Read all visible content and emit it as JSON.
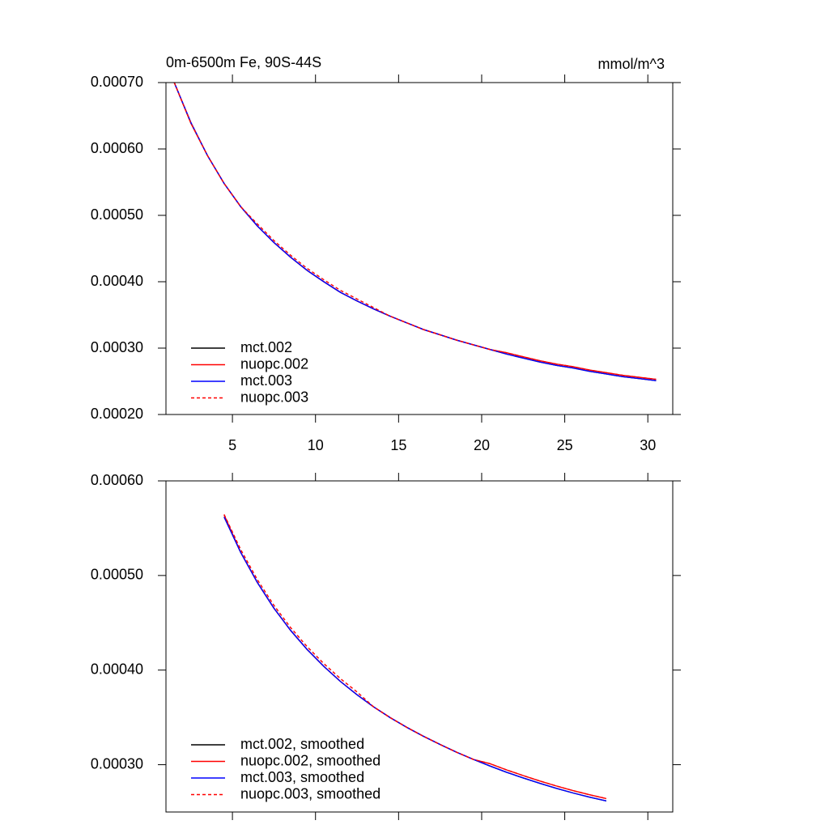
{
  "chart_data": [
    {
      "type": "line",
      "title": "0m-6500m Fe, 90S-44S",
      "units": "mmol/m^3",
      "x": [
        1.5,
        2.5,
        3.5,
        4.5,
        5.5,
        6.5,
        7.5,
        8.5,
        9.5,
        10.5,
        11.5,
        12.5,
        13.5,
        14.5,
        15.5,
        16.5,
        17.5,
        18.5,
        19.5,
        20.5,
        21.5,
        22.5,
        23.5,
        24.5,
        25.5,
        26.5,
        27.5,
        28.5,
        29.5,
        30.5
      ],
      "series": [
        {
          "name": "mct.002",
          "color": "#000000",
          "dashed": false,
          "values": [
            0.0007,
            0.000639,
            0.00059,
            0.000548,
            0.000513,
            0.000484,
            0.000459,
            0.000437,
            0.000417,
            0.0004,
            0.000384,
            0.000371,
            0.000359,
            0.000348,
            0.000338,
            0.000328,
            0.00032,
            0.000312,
            0.000305,
            0.000298,
            0.000291,
            0.000285,
            0.000279,
            0.000274,
            0.00027,
            0.000265,
            0.000261,
            0.000257,
            0.000254,
            0.000251
          ]
        },
        {
          "name": "nuopc.002",
          "color": "#ff0000",
          "dashed": false,
          "values": [
            0.0007,
            0.000639,
            0.00059,
            0.000548,
            0.000513,
            0.000484,
            0.000459,
            0.000437,
            0.000417,
            0.0004,
            0.000384,
            0.000371,
            0.000359,
            0.000348,
            0.000338,
            0.000328,
            0.00032,
            0.000312,
            0.000305,
            0.000298,
            0.000293,
            0.000287,
            0.000281,
            0.000276,
            0.000272,
            0.000267,
            0.000263,
            0.000259,
            0.000256,
            0.000253
          ]
        },
        {
          "name": "mct.003",
          "color": "#0000ff",
          "dashed": false,
          "values": [
            0.0007,
            0.00064,
            0.00059,
            0.000548,
            0.000513,
            0.000484,
            0.000459,
            0.000437,
            0.000417,
            0.0004,
            0.000384,
            0.000371,
            0.000359,
            0.000348,
            0.000338,
            0.000328,
            0.00032,
            0.000312,
            0.000305,
            0.000298,
            0.000291,
            0.000285,
            0.000279,
            0.000274,
            0.00027,
            0.000265,
            0.000261,
            0.000257,
            0.000254,
            0.000251
          ]
        },
        {
          "name": "nuopc.003",
          "color": "#ff0000",
          "dashed": true,
          "values": [
            0.0007,
            0.000639,
            0.00059,
            0.000548,
            0.000513,
            0.000487,
            0.000462,
            0.00044,
            0.00042,
            0.000403,
            0.000387,
            0.000374,
            0.000361,
            0.000348,
            0.000338,
            0.000328,
            0.00032,
            0.000312,
            0.000305,
            0.000298,
            0.000293,
            0.000287,
            0.000281,
            0.000276,
            0.000272,
            0.000267,
            0.000263,
            0.000259,
            0.000256,
            0.000253
          ]
        }
      ],
      "xlim": [
        1,
        31.5
      ],
      "xticks": [
        5,
        10,
        15,
        20,
        25,
        30
      ],
      "ylim": [
        0.0002,
        0.0007
      ],
      "yticks": [
        {
          "value": 0.0002,
          "label": "0.00020"
        },
        {
          "value": 0.0003,
          "label": "0.00030"
        },
        {
          "value": 0.0004,
          "label": "0.00040"
        },
        {
          "value": 0.0005,
          "label": "0.00050"
        },
        {
          "value": 0.0006,
          "label": "0.00060"
        },
        {
          "value": 0.0007,
          "label": "0.00070"
        }
      ],
      "legend": "lower left"
    },
    {
      "type": "line",
      "x": [
        4.5,
        5.5,
        6.5,
        7.5,
        8.5,
        9.5,
        10.5,
        11.5,
        12.5,
        13.5,
        14.5,
        15.5,
        16.5,
        17.5,
        18.5,
        19.5,
        20.5,
        21.5,
        22.5,
        23.5,
        24.5,
        25.5,
        26.5,
        27.5
      ],
      "series": [
        {
          "name": "mct.002, smoothed",
          "color": "#000000",
          "dashed": false,
          "values": [
            0.0005619,
            0.0005243,
            0.0004926,
            0.0004654,
            0.000442,
            0.0004217,
            0.0004039,
            0.000388,
            0.0003739,
            0.0003611,
            0.0003497,
            0.0003394,
            0.00033,
            0.0003213,
            0.0003131,
            0.0003056,
            0.0002986,
            0.000292,
            0.000286,
            0.0002803,
            0.000275,
            0.0002701,
            0.0002657,
            0.0002617
          ]
        },
        {
          "name": "nuopc.002, smoothed",
          "color": "#ff0000",
          "dashed": false,
          "values": [
            0.000564,
            0.0005243,
            0.0004926,
            0.0004654,
            0.000442,
            0.0004217,
            0.0004039,
            0.000388,
            0.0003739,
            0.0003611,
            0.0003497,
            0.0003394,
            0.00033,
            0.0003213,
            0.0003131,
            0.0003056,
            0.0003011,
            0.0002945,
            0.0002885,
            0.0002828,
            0.0002775,
            0.0002726,
            0.0002682,
            0.0002642
          ]
        },
        {
          "name": "mct.003, smoothed",
          "color": "#0000ff",
          "dashed": false,
          "values": [
            0.0005619,
            0.0005243,
            0.0004926,
            0.0004654,
            0.000442,
            0.0004217,
            0.0004039,
            0.000388,
            0.0003739,
            0.0003611,
            0.0003497,
            0.0003394,
            0.00033,
            0.0003213,
            0.0003131,
            0.0003056,
            0.0002986,
            0.000292,
            0.000286,
            0.0002803,
            0.000275,
            0.0002701,
            0.0002657,
            0.0002617
          ]
        },
        {
          "name": "nuopc.003, smoothed",
          "color": "#ff0000",
          "dashed": true,
          "values": [
            0.0005645,
            0.0005273,
            0.0004956,
            0.0004684,
            0.000445,
            0.0004247,
            0.0004069,
            0.000391,
            0.0003769,
            0.0003611,
            0.0003497,
            0.0003394,
            0.00033,
            0.0003213,
            0.0003131,
            0.0003056,
            0.0003011,
            0.0002945,
            0.0002885,
            0.0002828,
            0.0002775,
            0.0002726,
            0.0002682,
            0.0002642
          ]
        }
      ],
      "xlim": [
        1,
        31.5
      ],
      "xticks": [
        5,
        10,
        15,
        20,
        25,
        30
      ],
      "ylim": [
        0.00025,
        0.0006
      ],
      "yticks": [
        {
          "value": 0.0003,
          "label": "0.00030"
        },
        {
          "value": 0.0004,
          "label": "0.00040"
        },
        {
          "value": 0.0005,
          "label": "0.00050"
        },
        {
          "value": 0.0006,
          "label": "0.00060"
        }
      ],
      "legend": "lower left"
    }
  ]
}
